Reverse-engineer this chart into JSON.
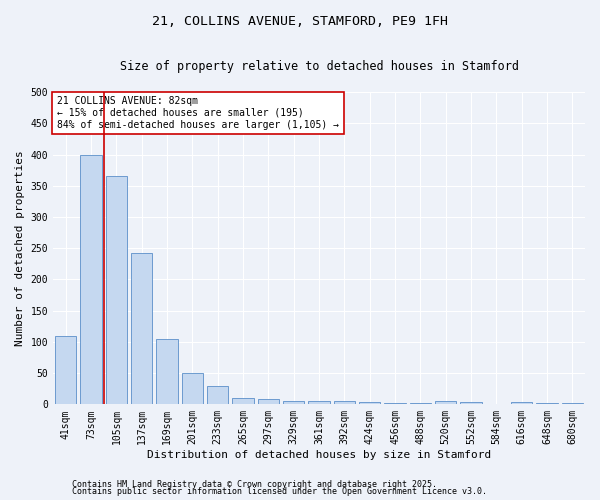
{
  "title1": "21, COLLINS AVENUE, STAMFORD, PE9 1FH",
  "title2": "Size of property relative to detached houses in Stamford",
  "xlabel": "Distribution of detached houses by size in Stamford",
  "ylabel": "Number of detached properties",
  "categories": [
    "41sqm",
    "73sqm",
    "105sqm",
    "137sqm",
    "169sqm",
    "201sqm",
    "233sqm",
    "265sqm",
    "297sqm",
    "329sqm",
    "361sqm",
    "392sqm",
    "424sqm",
    "456sqm",
    "488sqm",
    "520sqm",
    "552sqm",
    "584sqm",
    "616sqm",
    "648sqm",
    "680sqm"
  ],
  "values": [
    110,
    400,
    365,
    242,
    105,
    50,
    29,
    10,
    8,
    5,
    5,
    5,
    4,
    2,
    2,
    6,
    3,
    1,
    3,
    2,
    2
  ],
  "bar_color": "#c5d8f0",
  "bar_edge_color": "#5b8fc9",
  "vline_color": "#cc0000",
  "vline_x": 1.5,
  "ylim": [
    0,
    500
  ],
  "yticks": [
    0,
    50,
    100,
    150,
    200,
    250,
    300,
    350,
    400,
    450,
    500
  ],
  "annotation_text": "21 COLLINS AVENUE: 82sqm\n← 15% of detached houses are smaller (195)\n84% of semi-detached houses are larger (1,105) →",
  "annotation_box_facecolor": "#ffffff",
  "annotation_box_edgecolor": "#cc0000",
  "footer1": "Contains HM Land Registry data © Crown copyright and database right 2025.",
  "footer2": "Contains public sector information licensed under the Open Government Licence v3.0.",
  "background_color": "#eef2f9",
  "grid_color": "#ffffff",
  "title_fontsize": 9.5,
  "subtitle_fontsize": 8.5,
  "tick_fontsize": 7,
  "label_fontsize": 8,
  "ann_fontsize": 7,
  "footer_fontsize": 6
}
